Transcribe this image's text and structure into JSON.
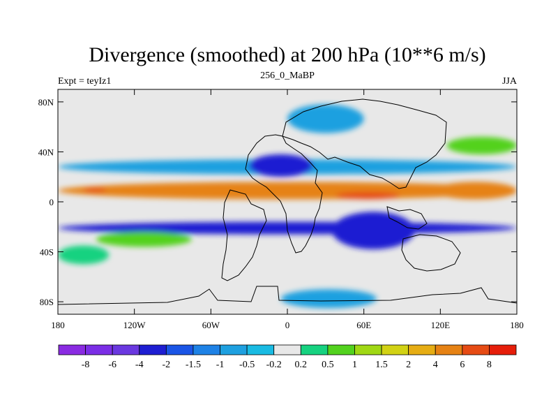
{
  "chart_data": {
    "type": "heatmap",
    "title": "Divergence (smoothed) at 200 hPa (10**6 m/s)",
    "subtitle": "256_0_MaBP",
    "left_label": "Expt = teyIz1",
    "right_label": "JJA",
    "x_axis": {
      "range": [
        -180,
        180
      ],
      "ticks": [
        {
          "value": -180,
          "label": "180"
        },
        {
          "value": -120,
          "label": "120W"
        },
        {
          "value": -60,
          "label": "60W"
        },
        {
          "value": 0,
          "label": "0"
        },
        {
          "value": 60,
          "label": "60E"
        },
        {
          "value": 120,
          "label": "120E"
        },
        {
          "value": 180,
          "label": "180"
        }
      ]
    },
    "y_axis": {
      "range": [
        -90,
        90
      ],
      "ticks": [
        {
          "value": 80,
          "label": "80N"
        },
        {
          "value": 40,
          "label": "40N"
        },
        {
          "value": 0,
          "label": "0"
        },
        {
          "value": -40,
          "label": "40S"
        },
        {
          "value": -80,
          "label": "80S"
        }
      ]
    },
    "colorbar": {
      "colors": [
        "#8a2be2",
        "#7b2ee6",
        "#6a38e0",
        "#1e1ed2",
        "#1a55e6",
        "#1e82e6",
        "#1ea0e0",
        "#19bbe3",
        "#e8e8e8",
        "#16d280",
        "#52d21e",
        "#a0d814",
        "#d2d214",
        "#e6ad14",
        "#e68214",
        "#e64b14",
        "#e61e0a"
      ],
      "labels": [
        "-8",
        "-6",
        "-4",
        "-2",
        "-1.5",
        "-1",
        "-0.5",
        "-0.2",
        "0.2",
        "0.5",
        "1",
        "1.5",
        "2",
        "4",
        "6",
        "8"
      ]
    },
    "regions": [
      {
        "name": "itcz-divergence-band",
        "color": "#e68214",
        "lon": [
          -180,
          180
        ],
        "lat": [
          2,
          16
        ]
      },
      {
        "name": "african-asian-divergence-core",
        "color": "#e64b14",
        "lon": [
          38,
          88
        ],
        "lat": [
          2,
          8
        ]
      },
      {
        "name": "pacific-divergence-strip",
        "color": "#e64b14",
        "lon": [
          -160,
          -142
        ],
        "lat": [
          8,
          11
        ]
      },
      {
        "name": "pacific-divergence-east",
        "color": "#e68214",
        "lon": [
          115,
          180
        ],
        "lat": [
          2,
          16
        ]
      },
      {
        "name": "southern-convergence-band",
        "color": "#1e1ed2",
        "lon": [
          -180,
          180
        ],
        "lat": [
          -26,
          -16
        ]
      },
      {
        "name": "indian-ocean-convergence",
        "color": "#1e1ed2",
        "lon": [
          35,
          100
        ],
        "lat": [
          -38,
          -8
        ]
      },
      {
        "name": "northern-convergence-band",
        "color": "#1ea0e0",
        "lon": [
          -180,
          180
        ],
        "lat": [
          22,
          34
        ]
      },
      {
        "name": "asia-convergence-core",
        "color": "#1e1ed2",
        "lon": [
          -30,
          20
        ],
        "lat": [
          20,
          38
        ]
      },
      {
        "name": "arctic-convergence",
        "color": "#1ea0e0",
        "lon": [
          0,
          60
        ],
        "lat": [
          55,
          78
        ]
      },
      {
        "name": "north-pacific-divergence",
        "color": "#52d21e",
        "lon": [
          125,
          180
        ],
        "lat": [
          38,
          52
        ]
      },
      {
        "name": "south-pacific-divergence",
        "color": "#52d21e",
        "lon": [
          -150,
          -75
        ],
        "lat": [
          -36,
          -24
        ]
      },
      {
        "name": "southern-ocean-divergence",
        "color": "#16d280",
        "lon": [
          -180,
          -140
        ],
        "lat": [
          -50,
          -35
        ]
      },
      {
        "name": "antarctic-convergence",
        "color": "#1ea0e0",
        "lon": [
          -5,
          70
        ],
        "lat": [
          -85,
          -70
        ]
      }
    ]
  }
}
